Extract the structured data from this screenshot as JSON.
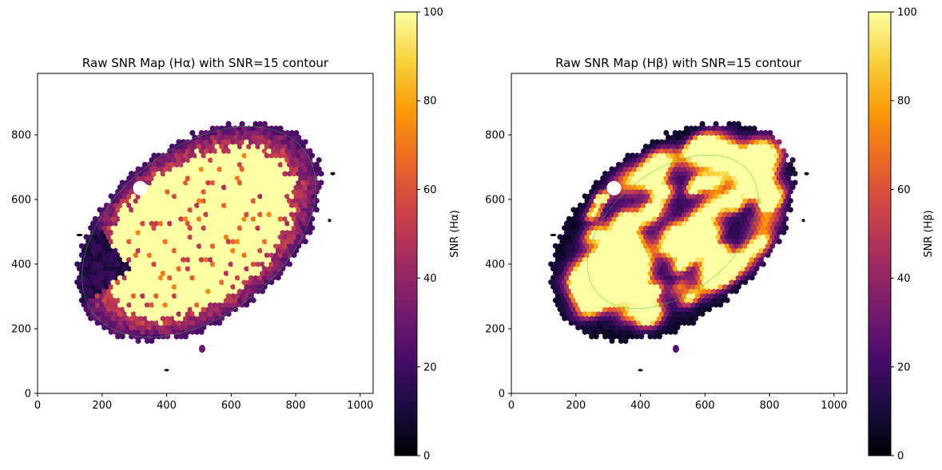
{
  "colors": {
    "colormap": [
      "#000004",
      "#1b0c41",
      "#4a0c6b",
      "#781c6d",
      "#a52c60",
      "#cf4446",
      "#ed6925",
      "#fb9b06",
      "#f7d13d",
      "#fcffa4"
    ],
    "contour": "#2ecc40",
    "axes": "#000000"
  },
  "chart_data": [
    {
      "type": "heatmap",
      "title": "Raw SNR Map (Hα) with SNR=15 contour",
      "xlabel": "",
      "ylabel": "",
      "xlim": [
        0,
        1040
      ],
      "ylim": [
        0,
        990
      ],
      "xticks": [
        "0",
        "200",
        "400",
        "600",
        "800",
        "1000"
      ],
      "yticks": [
        "0",
        "200",
        "400",
        "600",
        "800"
      ],
      "colorbar": {
        "label": "SNR (Hα)",
        "range": [
          0,
          100
        ],
        "ticks": [
          "0",
          "20",
          "40",
          "60",
          "80",
          "100"
        ]
      },
      "contour_level": 15,
      "galaxy": {
        "center": [
          500,
          500
        ],
        "semi_major": 430,
        "semi_minor": 270,
        "angle_deg": 38
      },
      "peak_regime": "saturated"
    },
    {
      "type": "heatmap",
      "title": "Raw SNR Map (Hβ) with SNR=15 contour",
      "xlabel": "",
      "ylabel": "",
      "xlim": [
        0,
        1040
      ],
      "ylim": [
        0,
        990
      ],
      "xticks": [
        "0",
        "200",
        "400",
        "600",
        "800",
        "1000"
      ],
      "yticks": [
        "0",
        "200",
        "400",
        "600",
        "800"
      ],
      "colorbar": {
        "label": "SNR (Hβ)",
        "range": [
          0,
          100
        ],
        "ticks": [
          "0",
          "20",
          "40",
          "60",
          "80",
          "100"
        ]
      },
      "contour_level": 15,
      "galaxy": {
        "center": [
          500,
          500
        ],
        "semi_major": 430,
        "semi_minor": 270,
        "angle_deg": 38
      },
      "peak_regime": "clumpy"
    }
  ]
}
